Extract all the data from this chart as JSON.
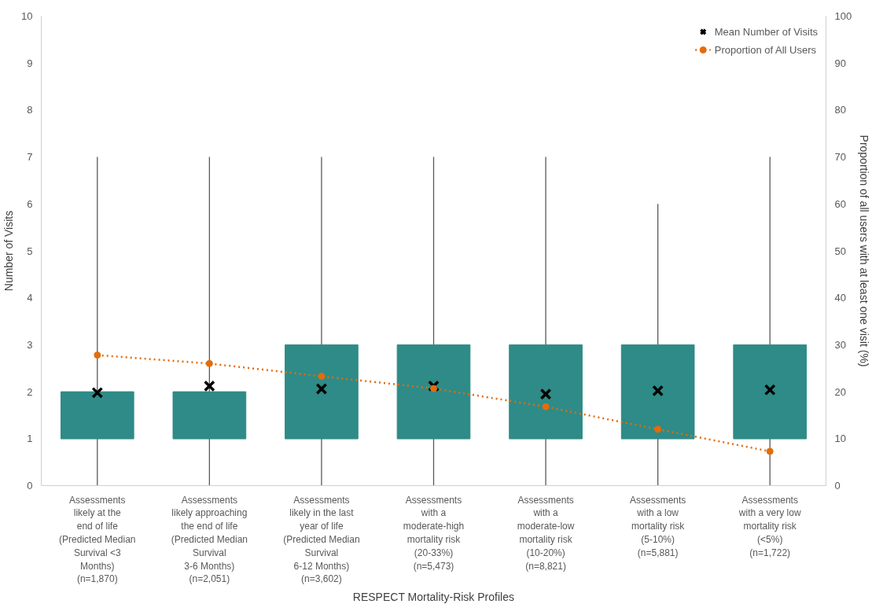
{
  "chart_data": {
    "type": "box",
    "xlabel": "RESPECT Mortality-Risk Profiles",
    "ylabel": "Number of Visits",
    "y2label": "Proportion of all users with at least one visit (%)",
    "categories": [
      "Assessments\nlikely at the\nend of life\n(Predicted Median\nSurvival <3\nMonths)\n(n=1,870)",
      "Assessments\nlikely approaching\nthe end of life\n(Predicted Median\nSurvival\n3-6 Months)\n(n=2,051)",
      "Assessments\nlikely in the last\nyear of life\n(Predicted Median\nSurvival\n6-12 Months)\n(n=3,602)",
      "Assessments\nwith a\nmoderate-high\nmortality risk\n(20-33%)\n(n=5,473)",
      "Assessments\nwith a\nmoderate-low\nmortality risk\n(10-20%)\n(n=8,821)",
      "Assessments\nwith a low\nmortality risk\n(5-10%)\n(n=5,881)",
      "Assessments\nwith a very low\nmortality risk\n(<5%)\n(n=1,722)"
    ],
    "boxes": [
      {
        "low": 0,
        "q1": 1,
        "median": 1,
        "q3": 2,
        "high": 7
      },
      {
        "low": 0,
        "q1": 1,
        "median": 1,
        "q3": 2,
        "high": 7
      },
      {
        "low": 0,
        "q1": 1,
        "median": 1,
        "q3": 3,
        "high": 7
      },
      {
        "low": 0,
        "q1": 1,
        "median": 1,
        "q3": 3,
        "high": 7
      },
      {
        "low": 0,
        "q1": 1,
        "median": 1,
        "q3": 3,
        "high": 7
      },
      {
        "low": 0,
        "q1": 1,
        "median": 1,
        "q3": 3,
        "high": 6
      },
      {
        "low": 0,
        "q1": 1,
        "median": 1,
        "q3": 3,
        "high": 7
      }
    ],
    "color": "#2e8b87",
    "series": [
      {
        "name": "Mean Number of Visits",
        "type": "scatter",
        "marker": "cross",
        "color": "#000000",
        "values": [
          1.98,
          2.12,
          2.06,
          2.12,
          1.95,
          2.02,
          2.04
        ]
      },
      {
        "name": "Proportion of All Users",
        "type": "line",
        "axis": "y2",
        "marker": "circle",
        "line_style": "dotted",
        "color": "#e46c0a",
        "values": [
          27.8,
          26.0,
          23.3,
          20.7,
          16.8,
          12.0,
          7.3
        ]
      }
    ],
    "ylim": [
      0,
      10
    ],
    "yticks": [
      0,
      1,
      2,
      3,
      4,
      5,
      6,
      7,
      8,
      9,
      10
    ],
    "y2lim": [
      0,
      100
    ],
    "y2ticks": [
      0,
      10,
      20,
      30,
      40,
      50,
      60,
      70,
      80,
      90,
      100
    ],
    "grid": false,
    "legend": "top right"
  }
}
